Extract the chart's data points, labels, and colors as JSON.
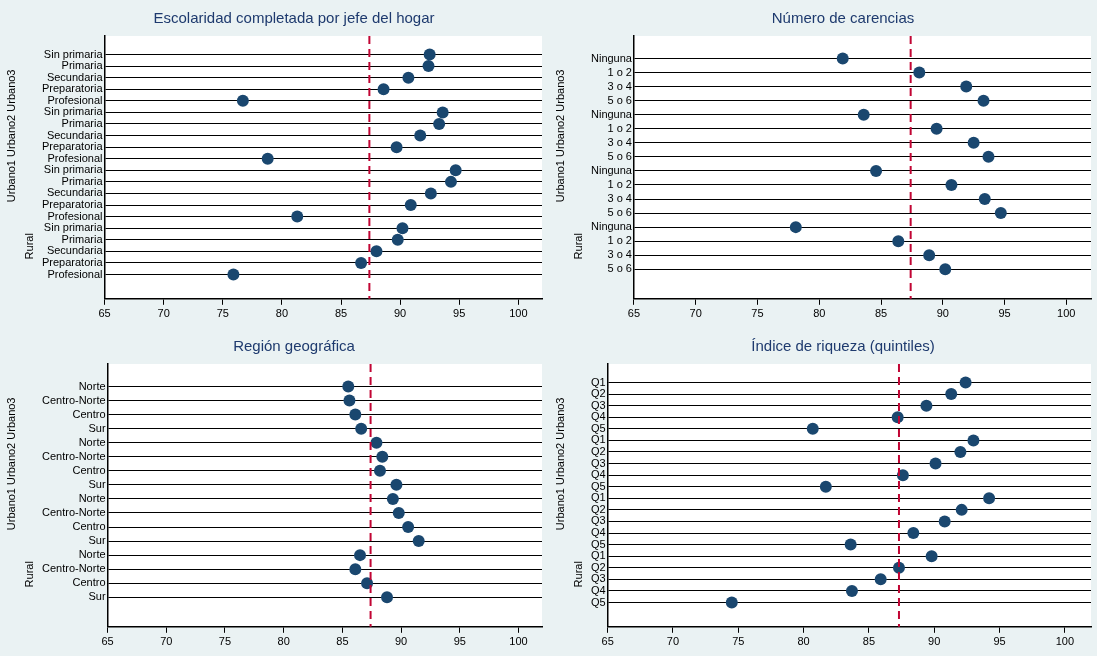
{
  "chart_data": [
    {
      "type": "scatter",
      "orientation": "horizontal",
      "title": "Escolaridad completada por jefe del hogar",
      "ylabel": "Urbano1 Urbano2 Urbano3",
      "annotations": [
        "Rural"
      ],
      "categories": [
        "Sin primaria",
        "Primaria",
        "Secundaria",
        "Preparatoria",
        "Profesional",
        "Sin primaria",
        "Primaria",
        "Secundaria",
        "Preparatoria",
        "Profesional",
        "Sin primaria",
        "Primaria",
        "Secundaria",
        "Preparatoria",
        "Profesional",
        "Sin primaria",
        "Primaria",
        "Secundaria",
        "Preparatoria",
        "Profesional"
      ],
      "series": [
        {
          "color": "#1a476f",
          "values": [
            92.5,
            92.4,
            90.7,
            88.6,
            76.7,
            93.6,
            93.3,
            91.7,
            89.7,
            78.8,
            94.7,
            94.3,
            92.6,
            90.9,
            81.3,
            90.2,
            89.8,
            88.0,
            86.7,
            75.9
          ]
        }
      ],
      "xlim": [
        65,
        102
      ],
      "xticks": [
        65,
        70,
        75,
        80,
        85,
        90,
        95,
        100
      ],
      "grid": "y",
      "legend": false,
      "marker": "circle",
      "ref_lines": [
        {
          "axis": "x",
          "value": 87.4,
          "color": "#c10534",
          "line_style": "dashed"
        }
      ]
    },
    {
      "type": "scatter",
      "orientation": "horizontal",
      "title": "Número de carencias",
      "ylabel": "Urbano1 Urbano2 Urbano3",
      "annotations": [
        "Rural"
      ],
      "categories": [
        "Ninguna",
        "1 o 2",
        "3 o 4",
        "5 o 6",
        "Ninguna",
        "1 o 2",
        "3 o 4",
        "5 o 6",
        "Ninguna",
        "1 o 2",
        "3 o 4",
        "5 o 6",
        "Ninguna",
        "1 o 2",
        "3 o 4",
        "5 o 6"
      ],
      "series": [
        {
          "color": "#1a476f",
          "values": [
            81.9,
            88.1,
            91.9,
            93.3,
            83.6,
            89.5,
            92.5,
            93.7,
            84.6,
            90.7,
            93.4,
            94.7,
            78.1,
            86.4,
            88.9,
            90.2
          ]
        }
      ],
      "xlim": [
        65,
        102
      ],
      "xticks": [
        65,
        70,
        75,
        80,
        85,
        90,
        95,
        100
      ],
      "grid": "y",
      "legend": false,
      "marker": "circle",
      "ref_lines": [
        {
          "axis": "x",
          "value": 87.4,
          "color": "#c10534",
          "line_style": "dashed"
        }
      ]
    },
    {
      "type": "scatter",
      "orientation": "horizontal",
      "title": "Región geográfica",
      "ylabel": "Urbano1 Urbano2 Urbano3",
      "annotations": [
        "Rural"
      ],
      "categories": [
        "Norte",
        "Centro-Norte",
        "Centro",
        "Sur",
        "Norte",
        "Centro-Norte",
        "Centro",
        "Sur",
        "Norte",
        "Centro-Norte",
        "Centro",
        "Sur",
        "Norte",
        "Centro-Norte",
        "Centro",
        "Sur"
      ],
      "series": [
        {
          "color": "#1a476f",
          "values": [
            85.5,
            85.6,
            86.1,
            86.6,
            87.9,
            88.4,
            88.2,
            89.6,
            89.3,
            89.8,
            90.6,
            91.5,
            86.5,
            86.1,
            87.1,
            88.8
          ]
        }
      ],
      "xlim": [
        65,
        102
      ],
      "xticks": [
        65,
        70,
        75,
        80,
        85,
        90,
        95,
        100
      ],
      "grid": "y",
      "legend": false,
      "marker": "circle",
      "ref_lines": [
        {
          "axis": "x",
          "value": 87.4,
          "color": "#c10534",
          "line_style": "dashed"
        }
      ]
    },
    {
      "type": "scatter",
      "orientation": "horizontal",
      "title": "Índice de riqueza (quintiles)",
      "ylabel": "Urbano1 Urbano2 Urbano3",
      "annotations": [
        "Rural"
      ],
      "categories": [
        "Q1",
        "Q2",
        "Q3",
        "Q4",
        "Q5",
        "Q1",
        "Q2",
        "Q3",
        "Q4",
        "Q5",
        "Q1",
        "Q2",
        "Q3",
        "Q4",
        "Q5",
        "Q1",
        "Q2",
        "Q3",
        "Q4",
        "Q5"
      ],
      "series": [
        {
          "color": "#1a476f",
          "values": [
            92.4,
            91.3,
            89.4,
            87.2,
            80.7,
            93.0,
            92.0,
            90.1,
            87.6,
            81.7,
            94.2,
            92.1,
            90.8,
            88.4,
            83.6,
            89.8,
            87.3,
            85.9,
            83.7,
            74.5
          ]
        }
      ],
      "xlim": [
        65,
        102
      ],
      "xticks": [
        65,
        70,
        75,
        80,
        85,
        90,
        95,
        100
      ],
      "grid": "y",
      "legend": false,
      "marker": "circle",
      "ref_lines": [
        {
          "axis": "x",
          "value": 87.3,
          "color": "#c10534",
          "line_style": "dashed"
        }
      ]
    }
  ]
}
